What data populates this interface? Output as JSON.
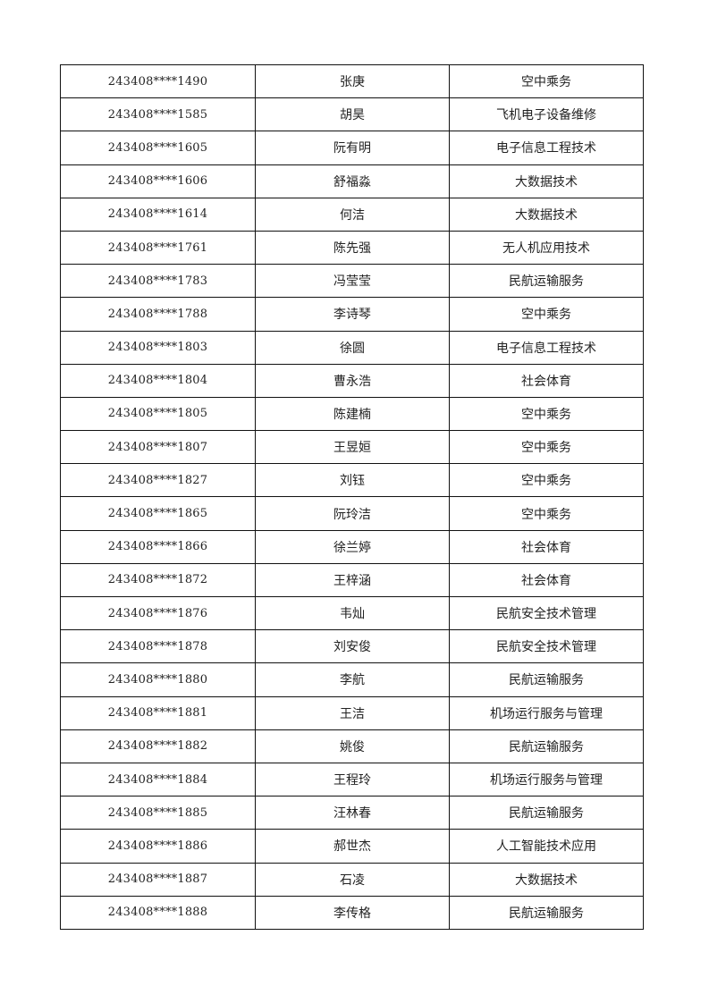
{
  "table": {
    "rows": [
      {
        "id": "243408****1490",
        "name": "张庚",
        "major": "空中乘务"
      },
      {
        "id": "243408****1585",
        "name": "胡昊",
        "major": "飞机电子设备维修"
      },
      {
        "id": "243408****1605",
        "name": "阮有明",
        "major": "电子信息工程技术"
      },
      {
        "id": "243408****1606",
        "name": "舒福淼",
        "major": "大数据技术"
      },
      {
        "id": "243408****1614",
        "name": "何洁",
        "major": "大数据技术"
      },
      {
        "id": "243408****1761",
        "name": "陈先强",
        "major": "无人机应用技术"
      },
      {
        "id": "243408****1783",
        "name": "冯莹莹",
        "major": "民航运输服务"
      },
      {
        "id": "243408****1788",
        "name": "李诗琴",
        "major": "空中乘务"
      },
      {
        "id": "243408****1803",
        "name": "徐圆",
        "major": "电子信息工程技术"
      },
      {
        "id": "243408****1804",
        "name": "曹永浩",
        "major": "社会体育"
      },
      {
        "id": "243408****1805",
        "name": "陈建楠",
        "major": "空中乘务"
      },
      {
        "id": "243408****1807",
        "name": "王昱姮",
        "major": "空中乘务"
      },
      {
        "id": "243408****1827",
        "name": "刘钰",
        "major": "空中乘务"
      },
      {
        "id": "243408****1865",
        "name": "阮玲洁",
        "major": "空中乘务"
      },
      {
        "id": "243408****1866",
        "name": "徐兰婷",
        "major": "社会体育"
      },
      {
        "id": "243408****1872",
        "name": "王梓涵",
        "major": "社会体育"
      },
      {
        "id": "243408****1876",
        "name": "韦灿",
        "major": "民航安全技术管理"
      },
      {
        "id": "243408****1878",
        "name": "刘安俊",
        "major": "民航安全技术管理"
      },
      {
        "id": "243408****1880",
        "name": "李航",
        "major": "民航运输服务"
      },
      {
        "id": "243408****1881",
        "name": "王洁",
        "major": "机场运行服务与管理"
      },
      {
        "id": "243408****1882",
        "name": "姚俊",
        "major": "民航运输服务"
      },
      {
        "id": "243408****1884",
        "name": "王程玲",
        "major": "机场运行服务与管理"
      },
      {
        "id": "243408****1885",
        "name": "汪林春",
        "major": "民航运输服务"
      },
      {
        "id": "243408****1886",
        "name": "郝世杰",
        "major": "人工智能技术应用"
      },
      {
        "id": "243408****1887",
        "name": "石凌",
        "major": "大数据技术"
      },
      {
        "id": "243408****1888",
        "name": "李传格",
        "major": "民航运输服务"
      }
    ]
  }
}
